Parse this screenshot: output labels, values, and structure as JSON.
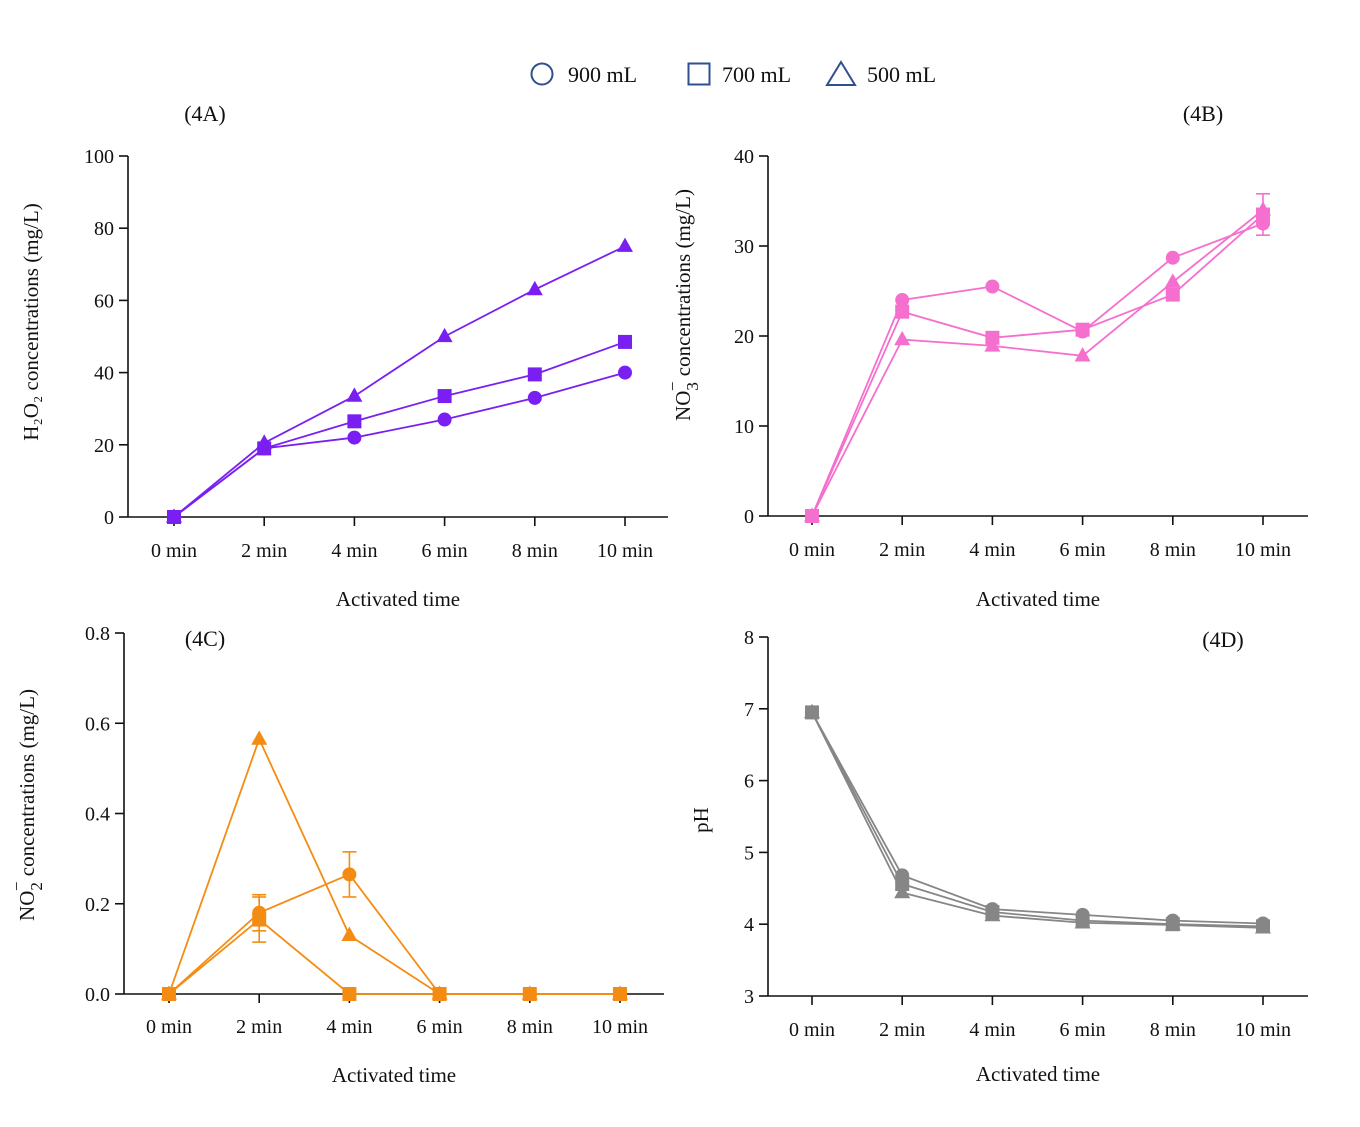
{
  "legend": {
    "items": [
      {
        "marker": "circle",
        "label": "900 mL"
      },
      {
        "marker": "square",
        "label": "700 mL"
      },
      {
        "marker": "triangle",
        "label": "500 mL"
      }
    ],
    "color": "#2f4f8f"
  },
  "chart_data": [
    {
      "panel": "(4A)",
      "type": "line",
      "color": "#7a1ff2",
      "categories": [
        "0 min",
        "2 min",
        "4 min",
        "6 min",
        "8 min",
        "10 min"
      ],
      "xlabel": "Activated time",
      "ylabel": "H₂O₂ concentrations (mg/L)",
      "ylim": [
        0,
        100
      ],
      "yticks": [
        0,
        20,
        40,
        60,
        80,
        100
      ],
      "ytick_labels": [
        "0",
        "20",
        "40",
        "60",
        "80",
        "100"
      ],
      "series": [
        {
          "name": "900 mL",
          "marker": "circle",
          "values": [
            0,
            19,
            22,
            27,
            33,
            40
          ]
        },
        {
          "name": "700 mL",
          "marker": "square",
          "values": [
            0,
            19,
            26.5,
            33.5,
            39.5,
            48.5
          ]
        },
        {
          "name": "500 mL",
          "marker": "triangle",
          "values": [
            0,
            20.5,
            33.5,
            50,
            63,
            75
          ]
        }
      ]
    },
    {
      "panel": "(4B)",
      "type": "line",
      "color": "#f56fcf",
      "categories": [
        "0 min",
        "2 min",
        "4 min",
        "6 min",
        "8 min",
        "10 min"
      ],
      "xlabel": "Activated time",
      "ylabel_main": "NO",
      "ylabel_sub": "3",
      "ylabel_sup": "−",
      "ylabel_rest": " concentrations (mg/L)",
      "ylim": [
        0,
        40
      ],
      "yticks": [
        0,
        10,
        20,
        30,
        40
      ],
      "ytick_labels": [
        "0",
        "10",
        "20",
        "30",
        "40"
      ],
      "series": [
        {
          "name": "900 mL",
          "marker": "circle",
          "values": [
            0,
            24,
            25.5,
            20.5,
            28.7,
            32.5
          ],
          "errors": [
            0,
            0,
            0,
            0,
            0,
            0
          ]
        },
        {
          "name": "700 mL",
          "marker": "square",
          "values": [
            0,
            22.7,
            19.8,
            20.7,
            24.6,
            33.5
          ],
          "errors": [
            0,
            0,
            0,
            0,
            0,
            2.3
          ]
        },
        {
          "name": "500 mL",
          "marker": "triangle",
          "values": [
            0,
            19.6,
            18.9,
            17.8,
            26,
            34
          ],
          "errors": [
            0,
            0,
            0,
            0,
            0,
            0
          ]
        }
      ]
    },
    {
      "panel": "(4C)",
      "type": "line",
      "color": "#f48c14",
      "categories": [
        "0 min",
        "2 min",
        "4 min",
        "6 min",
        "8 min",
        "10 min"
      ],
      "xlabel": "Activated time",
      "ylabel_main": "NO",
      "ylabel_sub": "2",
      "ylabel_sup": "−",
      "ylabel_rest": " concentrations (mg/L)",
      "ylim": [
        0,
        0.8
      ],
      "yticks": [
        0,
        0.2,
        0.4,
        0.6,
        0.8
      ],
      "ytick_labels": [
        "0.0",
        "0.2",
        "0.4",
        "0.6",
        "0.8"
      ],
      "series": [
        {
          "name": "900 mL",
          "marker": "circle",
          "values": [
            0,
            0.18,
            0.265,
            0,
            0,
            0
          ],
          "errors": [
            0,
            0.04,
            0.05,
            0,
            0,
            0
          ]
        },
        {
          "name": "700 mL",
          "marker": "square",
          "values": [
            0,
            0.165,
            0,
            0,
            0,
            0
          ],
          "errors": [
            0,
            0.05,
            0,
            0,
            0,
            0
          ]
        },
        {
          "name": "500 mL",
          "marker": "triangle",
          "values": [
            0,
            0.565,
            0.13,
            0,
            0,
            0
          ],
          "errors": [
            0,
            0,
            0,
            0,
            0,
            0
          ]
        }
      ]
    },
    {
      "panel": "(4D)",
      "type": "line",
      "color": "#868686",
      "categories": [
        "0 min",
        "2 min",
        "4 min",
        "6 min",
        "8 min",
        "10 min"
      ],
      "xlabel": "Activated time",
      "ylabel": "pH",
      "ylim": [
        3,
        8
      ],
      "yticks": [
        3,
        4,
        5,
        6,
        7,
        8
      ],
      "ytick_labels": [
        "3",
        "4",
        "5",
        "6",
        "7",
        "8"
      ],
      "series": [
        {
          "name": "900 mL",
          "marker": "circle",
          "values": [
            6.95,
            4.68,
            4.21,
            4.13,
            4.05,
            4.01
          ]
        },
        {
          "name": "700 mL",
          "marker": "square",
          "values": [
            6.95,
            4.56,
            4.17,
            4.05,
            4.0,
            3.97
          ]
        },
        {
          "name": "500 mL",
          "marker": "triangle",
          "values": [
            6.95,
            4.44,
            4.12,
            4.02,
            3.99,
            3.95
          ]
        }
      ]
    }
  ]
}
